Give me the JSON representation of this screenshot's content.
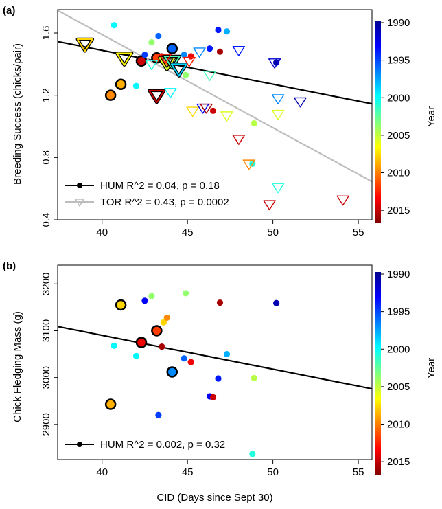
{
  "chart_data": [
    {
      "panel_tag": "(a)",
      "type": "scatter",
      "xlabel": "",
      "ylabel": "Breeding Success (chicks/pair)",
      "xlim": [
        37.4,
        55.8
      ],
      "ylim": [
        0.4,
        1.75
      ],
      "x_ticks": [
        "40",
        "45",
        "50",
        "55"
      ],
      "y_ticks": [
        "0.4",
        "0.8",
        "1.2",
        "1.6"
      ],
      "grid": false,
      "legend_position": "bottom-left",
      "legend": [
        {
          "label": "HUM R^2 = 0.04, p = 0.18",
          "color": "#000000",
          "marker": "circle"
        },
        {
          "label": "TOR R^2 = 0.43, p = 0.0002",
          "color": "#bdbdbd",
          "marker": "triangle-down"
        }
      ],
      "trend_lines": [
        {
          "name": "HUM",
          "color": "#000000",
          "x": [
            37.4,
            55.8
          ],
          "y": [
            1.545,
            1.145
          ]
        },
        {
          "name": "TOR",
          "color": "#bdbdbd",
          "x": [
            37.4,
            55.8
          ],
          "y": [
            1.745,
            0.645
          ]
        }
      ],
      "series": [
        {
          "name": "HUM",
          "marker": "circle",
          "points": [
            {
              "x": 40.5,
              "y": 1.2,
              "year": 2010,
              "bold": true
            },
            {
              "x": 41.1,
              "y": 1.27,
              "year": 2009,
              "bold": true
            },
            {
              "x": 42.3,
              "y": 1.42,
              "year": 2015,
              "bold": true
            },
            {
              "x": 43.2,
              "y": 1.44,
              "year": 2012,
              "bold": true
            },
            {
              "x": 44.1,
              "y": 1.5,
              "year": 1996,
              "bold": true
            },
            {
              "x": 40.7,
              "y": 1.65,
              "year": 2000
            },
            {
              "x": 42.0,
              "y": 1.26,
              "year": 2000
            },
            {
              "x": 42.5,
              "y": 1.46,
              "year": 1995
            },
            {
              "x": 42.9,
              "y": 1.54,
              "year": 2004
            },
            {
              "x": 43.3,
              "y": 1.58,
              "year": 1996
            },
            {
              "x": 43.8,
              "y": 1.41,
              "year": 2010
            },
            {
              "x": 43.5,
              "y": 1.45,
              "year": 2016
            },
            {
              "x": 44.8,
              "y": 1.46,
              "year": 1997
            },
            {
              "x": 44.9,
              "y": 1.33,
              "year": 2004
            },
            {
              "x": 45.2,
              "y": 1.45,
              "year": 2014
            },
            {
              "x": 46.3,
              "y": 1.5,
              "year": 1994
            },
            {
              "x": 46.5,
              "y": 1.1,
              "year": 2015
            },
            {
              "x": 46.8,
              "y": 1.62,
              "year": 1994
            },
            {
              "x": 46.9,
              "y": 1.48,
              "year": 2016
            },
            {
              "x": 47.3,
              "y": 1.61,
              "year": 1998
            },
            {
              "x": 48.8,
              "y": 0.76,
              "year": 2001
            },
            {
              "x": 48.9,
              "y": 1.02,
              "year": 2005
            },
            {
              "x": 50.2,
              "y": 1.41,
              "year": 1991
            }
          ]
        },
        {
          "name": "TOR",
          "marker": "triangle-down",
          "points": [
            {
              "x": 39.0,
              "y": 1.53,
              "year": 2008,
              "bold": true
            },
            {
              "x": 41.3,
              "y": 1.44,
              "year": 2007,
              "bold": true
            },
            {
              "x": 43.2,
              "y": 1.2,
              "year": 2015,
              "bold": true
            },
            {
              "x": 43.8,
              "y": 1.41,
              "year": 2006,
              "bold": true
            },
            {
              "x": 44.1,
              "y": 1.42,
              "year": 2002,
              "bold": true
            },
            {
              "x": 44.5,
              "y": 1.37,
              "year": 1999,
              "bold": true
            },
            {
              "x": 42.9,
              "y": 1.4,
              "year": 2001
            },
            {
              "x": 44.0,
              "y": 1.22,
              "year": 2000
            },
            {
              "x": 43.7,
              "y": 1.44,
              "year": 2013
            },
            {
              "x": 45.1,
              "y": 1.42,
              "year": 2013
            },
            {
              "x": 45.3,
              "y": 1.1,
              "year": 2008
            },
            {
              "x": 45.7,
              "y": 1.48,
              "year": 1997
            },
            {
              "x": 45.9,
              "y": 1.12,
              "year": 1993
            },
            {
              "x": 46.1,
              "y": 1.12,
              "year": 2016
            },
            {
              "x": 46.3,
              "y": 1.33,
              "year": 2002
            },
            {
              "x": 47.3,
              "y": 1.07,
              "year": 2006
            },
            {
              "x": 48.0,
              "y": 1.49,
              "year": 1994
            },
            {
              "x": 48.0,
              "y": 0.92,
              "year": 2015
            },
            {
              "x": 48.6,
              "y": 0.76,
              "year": 2010
            },
            {
              "x": 49.8,
              "y": 0.5,
              "year": 2015
            },
            {
              "x": 50.1,
              "y": 1.41,
              "year": 1992
            },
            {
              "x": 50.3,
              "y": 1.18,
              "year": 1997
            },
            {
              "x": 50.3,
              "y": 1.08,
              "year": 2006
            },
            {
              "x": 50.3,
              "y": 0.61,
              "year": 2001
            },
            {
              "x": 51.6,
              "y": 1.16,
              "year": 1991
            },
            {
              "x": 54.1,
              "y": 0.53,
              "year": 2015
            }
          ]
        }
      ],
      "colorbar": {
        "label": "Year",
        "range": [
          1990,
          2017
        ],
        "ticks": [
          "1990",
          "1995",
          "2000",
          "2005",
          "2010",
          "2015"
        ]
      }
    },
    {
      "panel_tag": "(b)",
      "type": "scatter",
      "xlabel": "CID (Days since Sept 30)",
      "ylabel": "Chick Fledging Mass (g)",
      "xlim": [
        37.4,
        55.8
      ],
      "ylim": [
        2825,
        3240
      ],
      "x_ticks": [
        "40",
        "45",
        "50",
        "55"
      ],
      "y_ticks": [
        "2900",
        "3000",
        "3100",
        "3200"
      ],
      "grid": false,
      "legend_position": "bottom-left",
      "legend": [
        {
          "label": "HUM R^2 = 0.002, p = 0.32",
          "color": "#000000",
          "marker": "circle"
        }
      ],
      "trend_lines": [
        {
          "name": "HUM",
          "color": "#000000",
          "x": [
            37.4,
            55.8
          ],
          "y": [
            3109,
            2976
          ]
        }
      ],
      "series": [
        {
          "name": "HUM",
          "marker": "circle",
          "points": [
            {
              "x": 40.5,
              "y": 2943,
              "year": 2009,
              "bold": true
            },
            {
              "x": 41.1,
              "y": 3155,
              "year": 2008,
              "bold": true
            },
            {
              "x": 42.3,
              "y": 3075,
              "year": 2014,
              "bold": true
            },
            {
              "x": 43.2,
              "y": 3100,
              "year": 2012,
              "bold": true
            },
            {
              "x": 44.1,
              "y": 3012,
              "year": 1997,
              "bold": true
            },
            {
              "x": 40.7,
              "y": 3068,
              "year": 2000
            },
            {
              "x": 42.0,
              "y": 3046,
              "year": 2000
            },
            {
              "x": 42.5,
              "y": 3164,
              "year": 1993
            },
            {
              "x": 42.9,
              "y": 3174,
              "year": 2004
            },
            {
              "x": 43.3,
              "y": 2920,
              "year": 1995
            },
            {
              "x": 43.5,
              "y": 3066,
              "year": 2016
            },
            {
              "x": 43.6,
              "y": 3118,
              "year": 2008
            },
            {
              "x": 43.8,
              "y": 3128,
              "year": 2010
            },
            {
              "x": 44.8,
              "y": 3041,
              "year": 1996
            },
            {
              "x": 44.9,
              "y": 3180,
              "year": 2004
            },
            {
              "x": 45.2,
              "y": 3033,
              "year": 2014
            },
            {
              "x": 46.3,
              "y": 2960,
              "year": 1993
            },
            {
              "x": 46.5,
              "y": 2958,
              "year": 2015
            },
            {
              "x": 46.8,
              "y": 2998,
              "year": 1994
            },
            {
              "x": 46.9,
              "y": 3160,
              "year": 2016
            },
            {
              "x": 47.3,
              "y": 3050,
              "year": 1998
            },
            {
              "x": 48.8,
              "y": 2837,
              "year": 2001
            },
            {
              "x": 48.9,
              "y": 2999,
              "year": 2005
            },
            {
              "x": 50.2,
              "y": 3159,
              "year": 1991
            }
          ]
        }
      ],
      "colorbar": {
        "label": "Year",
        "range": [
          1990,
          2017
        ],
        "ticks": [
          "1990",
          "1995",
          "2000",
          "2005",
          "2010",
          "2015"
        ]
      }
    }
  ]
}
